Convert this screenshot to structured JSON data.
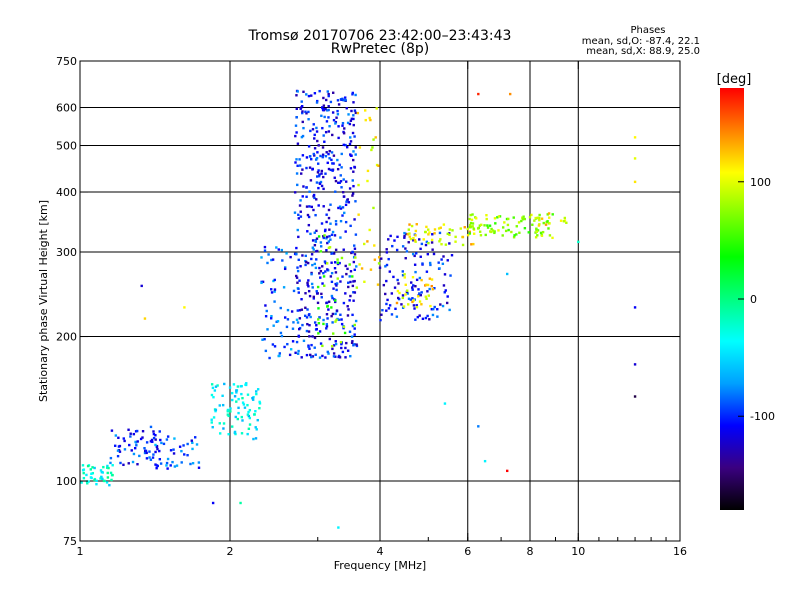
{
  "chart_data": {
    "type": "scatter",
    "title": "Tromsø 20170706 23:42:00–23:43:43",
    "subtitle": "RwPretec (8p)",
    "stats": {
      "heading": "Phases",
      "line1": "mean, sd,O: -87.4, 22.1",
      "line2": "mean, sd,X:  88.9, 25.0"
    },
    "xlabel": "Frequency [MHz]",
    "ylabel": "Stationary phase Virtual Height [km]",
    "xscale": "log",
    "yscale": "log",
    "xlim": [
      1,
      16
    ],
    "ylim": [
      75,
      750
    ],
    "xticks": [
      1,
      2,
      4,
      6,
      8,
      10,
      16
    ],
    "yticks": [
      75,
      100,
      200,
      300,
      400,
      500,
      600,
      750
    ],
    "x_gridlines": [
      2,
      4,
      6,
      8,
      10
    ],
    "y_gridlines": [
      100,
      200,
      300,
      400,
      500,
      600
    ],
    "grid": true,
    "colorbar": {
      "label": "[deg]",
      "range": [
        -180,
        180
      ],
      "ticks": [
        100,
        0,
        -100
      ],
      "colors": [
        "#000000",
        "#3a0080",
        "#0000ff",
        "#00a0ff",
        "#00ffff",
        "#00ff80",
        "#00ff00",
        "#80ff00",
        "#ffff00",
        "#ff8000",
        "#ff0000"
      ]
    },
    "clusters": [
      {
        "x": [
          1.0,
          1.17
        ],
        "y": [
          98,
          108
        ],
        "phase": -30,
        "count": 45
      },
      {
        "x": [
          1.15,
          1.45
        ],
        "y": [
          108,
          130
        ],
        "phase": -100,
        "count": 60
      },
      {
        "x": [
          1.4,
          1.75
        ],
        "y": [
          106,
          125
        ],
        "phase": -90,
        "count": 45
      },
      {
        "x": [
          1.82,
          2.3
        ],
        "y": [
          122,
          160
        ],
        "phase": -40,
        "count": 90
      },
      {
        "x": [
          2.3,
          2.75
        ],
        "y": [
          180,
          310
        ],
        "phase": -90,
        "count": 70
      },
      {
        "x": [
          2.7,
          3.6
        ],
        "y": [
          180,
          650
        ],
        "phase": -105,
        "count": 520
      },
      {
        "x": [
          3.0,
          3.6
        ],
        "y": [
          190,
          330
        ],
        "phase": 60,
        "count": 35
      },
      {
        "x": [
          3.6,
          4.0
        ],
        "y": [
          250,
          600
        ],
        "phase": 105,
        "count": 30
      },
      {
        "x": [
          4.0,
          5.6
        ],
        "y": [
          215,
          330
        ],
        "phase": -105,
        "count": 130
      },
      {
        "x": [
          4.3,
          5.2
        ],
        "y": [
          230,
          270
        ],
        "phase": 115,
        "count": 30
      },
      {
        "x": [
          4.5,
          6.2
        ],
        "y": [
          310,
          345
        ],
        "phase": 110,
        "count": 50
      },
      {
        "x": [
          6.0,
          9.0
        ],
        "y": [
          320,
          360
        ],
        "phase": 75,
        "count": 90
      },
      {
        "x": [
          8.0,
          9.5
        ],
        "y": [
          340,
          365
        ],
        "phase": 110,
        "count": 15
      }
    ],
    "outliers": [
      {
        "x": 1.33,
        "y": 255,
        "phase": -120
      },
      {
        "x": 1.35,
        "y": 218,
        "phase": 120
      },
      {
        "x": 1.62,
        "y": 230,
        "phase": 110
      },
      {
        "x": 1.85,
        "y": 90,
        "phase": -110
      },
      {
        "x": 2.1,
        "y": 90,
        "phase": -10
      },
      {
        "x": 3.3,
        "y": 80,
        "phase": -40
      },
      {
        "x": 5.4,
        "y": 145,
        "phase": -40
      },
      {
        "x": 6.3,
        "y": 130,
        "phase": -80
      },
      {
        "x": 6.3,
        "y": 640,
        "phase": 170
      },
      {
        "x": 6.5,
        "y": 110,
        "phase": -40
      },
      {
        "x": 7.2,
        "y": 270,
        "phase": -60
      },
      {
        "x": 7.2,
        "y": 105,
        "phase": 180
      },
      {
        "x": 7.3,
        "y": 640,
        "phase": 140
      },
      {
        "x": 10.0,
        "y": 315,
        "phase": -20
      },
      {
        "x": 13.0,
        "y": 520,
        "phase": 110
      },
      {
        "x": 13.0,
        "y": 470,
        "phase": 100
      },
      {
        "x": 13.0,
        "y": 420,
        "phase": 115
      },
      {
        "x": 13.0,
        "y": 230,
        "phase": -110
      },
      {
        "x": 13.0,
        "y": 175,
        "phase": -120
      },
      {
        "x": 13.0,
        "y": 150,
        "phase": -160
      }
    ]
  }
}
